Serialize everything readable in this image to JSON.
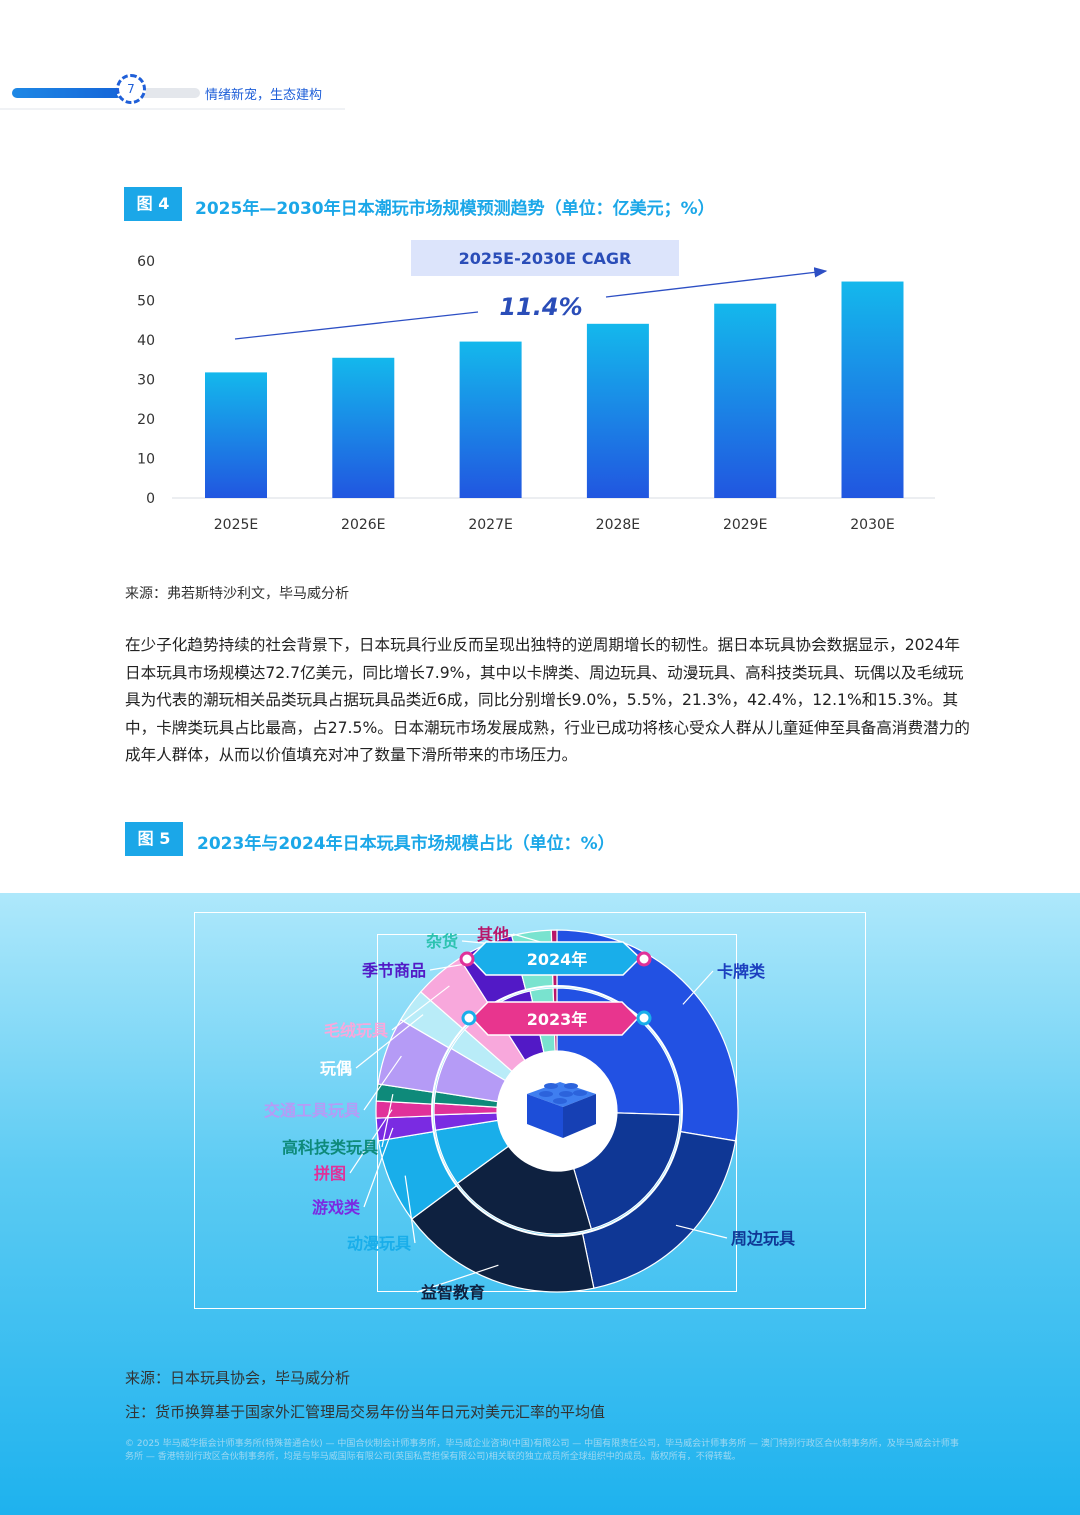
{
  "header": {
    "page_number": "7",
    "title": "情绪新宠，生态建构"
  },
  "figure4": {
    "tag": "图 4",
    "title": "2025年—2030年日本潮玩市场规模预测趋势（单位：亿美元；%）",
    "cagr_label": "2025E-2030E CAGR",
    "cagr_value": "11.4%",
    "source": "来源：弗若斯特沙利文，毕马威分析"
  },
  "paragraph": "在少子化趋势持续的社会背景下，日本玩具行业反而呈现出独特的逆周期增长的韧性。据日本玩具协会数据显示，2024年日本玩具市场规模达72.7亿美元，同比增长7.9%，其中以卡牌类、周边玩具、动漫玩具、高科技类玩具、玩偶以及毛绒玩具为代表的潮玩相关品类玩具占据玩具品类近6成，同比分别增长9.0%，5.5%，21.3%，42.4%，12.1%和15.3%。其中，卡牌类玩具占比最高，占27.5%。日本潮玩市场发展成熟，行业已成功将核心受众人群从儿童延伸至具备高消费潜力的成年人群体，从而以价值填充对冲了数量下滑所带来的市场压力。",
  "figure5": {
    "tag": "图 5",
    "title": "2023年与2024年日本玩具市场规模占比（单位：%）",
    "ring_outer_label": "2024年",
    "ring_inner_label": "2023年",
    "source": "来源：日本玩具协会，毕马威分析",
    "note": "注：货币换算基于国家外汇管理局交易年份当年日元对美元汇率的平均值"
  },
  "disclaimer": "© 2025 毕马威华振会计师事务所(特殊普通合伙) — 中国合伙制会计师事务所，毕马威企业咨询(中国)有限公司 — 中国有限责任公司，毕马威会计师事务所 — 澳门特别行政区合伙制事务所，及毕马威会计师事务所 — 香港特别行政区合伙制事务所，均是与毕马威国际有限公司(英国私营担保有限公司)相关联的独立成员所全球组织中的成员。版权所有，不得转载。",
  "chart_data": [
    {
      "type": "bar",
      "title": "2025年—2030年日本潮玩市场规模预测趋势（单位：亿美元；%）",
      "categories": [
        "2025E",
        "2026E",
        "2027E",
        "2028E",
        "2029E",
        "2030E"
      ],
      "values": [
        31.8,
        35.5,
        39.6,
        44.1,
        49.2,
        54.8
      ],
      "ylim": [
        0,
        60
      ],
      "yticks": [
        "0",
        "10",
        "20",
        "30",
        "40",
        "50",
        "60"
      ],
      "grid": false,
      "annotation": {
        "label": "2025E-2030E CAGR",
        "value": "11.4%"
      },
      "bar_color_top": "#14b8ec",
      "bar_color_bottom": "#2156e0"
    },
    {
      "type": "pie",
      "title": "2023年与2024年日本玩具市场规模占比（单位：%）",
      "style": "double-ring",
      "categories": [
        "卡牌类",
        "周边玩具",
        "益智教育",
        "动漫玩具",
        "游戏类",
        "拼图",
        "高科技类玩具",
        "交通工具玩具",
        "玩偶",
        "毛绒玩具",
        "季节商品",
        "杂货",
        "其他"
      ],
      "series": [
        {
          "name": "2024年",
          "values": [
            27.5,
            19.0,
            18.0,
            7.5,
            2.0,
            1.5,
            1.5,
            6.0,
            3.0,
            4.5,
            5.0,
            3.5,
            0.5
          ]
        },
        {
          "name": "2023年",
          "values": [
            25.5,
            20.0,
            19.5,
            7.5,
            2.0,
            1.5,
            1.5,
            6.0,
            3.0,
            4.5,
            5.5,
            3.0,
            0.5
          ]
        }
      ],
      "colors": [
        "#2251e3",
        "#0f3795",
        "#0e2140",
        "#19aeea",
        "#7a2be2",
        "#e0319a",
        "#0e8a7a",
        "#b59bf6",
        "#b9ecf8",
        "#f8a8dc",
        "#5219c6",
        "#79e3cf",
        "#b8166a"
      ],
      "label_colors": [
        "#1c3fbf",
        "#0f3795",
        "#0e2140",
        "#19aeea",
        "#7a2be2",
        "#e0319a",
        "#0e8a7a",
        "#b59bf6",
        "#ffffff",
        "#f8a8dc",
        "#5219c6",
        "#2cc2b0",
        "#b8166a"
      ]
    }
  ]
}
